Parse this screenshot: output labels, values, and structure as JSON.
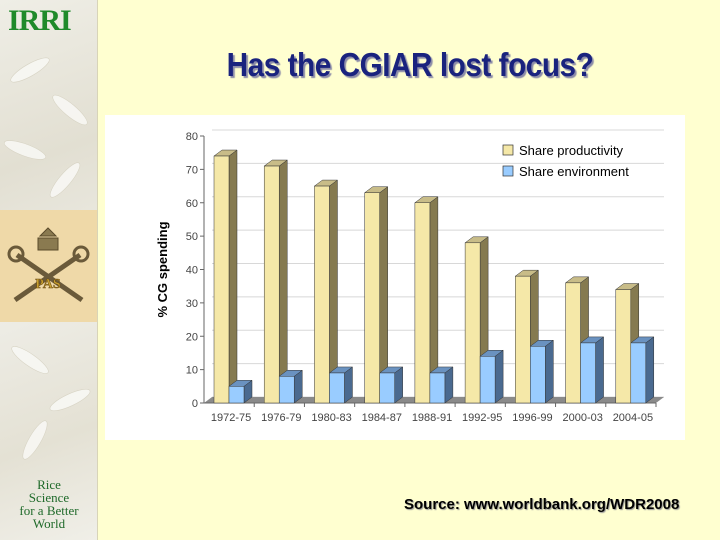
{
  "slide": {
    "title": "Has the CGIAR lost focus?",
    "source": "Source: www.worldbank.org/WDR2008",
    "logo_top": "IRRI",
    "logo_middle": "PAS",
    "logo_bottom": [
      "Rice",
      "Science",
      "for a Better",
      "World"
    ]
  },
  "colors": {
    "productivity": "#F5E8A8",
    "environment": "#99CCFF",
    "title": "#1a237e"
  },
  "chart_data": {
    "type": "bar",
    "title": "",
    "xlabel": "",
    "ylabel": "% CG spending",
    "ylim": [
      0,
      80
    ],
    "yticks": [
      0,
      10,
      20,
      30,
      40,
      50,
      60,
      70,
      80
    ],
    "grid": true,
    "legend_position": "top-right",
    "categories": [
      "1972-75",
      "1976-79",
      "1980-83",
      "1984-87",
      "1988-91",
      "1992-95",
      "1996-99",
      "2000-03",
      "2004-05"
    ],
    "series": [
      {
        "name": "Share productivity",
        "values": [
          74,
          71,
          65,
          63,
          60,
          48,
          38,
          36,
          34
        ]
      },
      {
        "name": "Share environment",
        "values": [
          5,
          8,
          9,
          9,
          9,
          14,
          17,
          18,
          18
        ]
      }
    ]
  }
}
